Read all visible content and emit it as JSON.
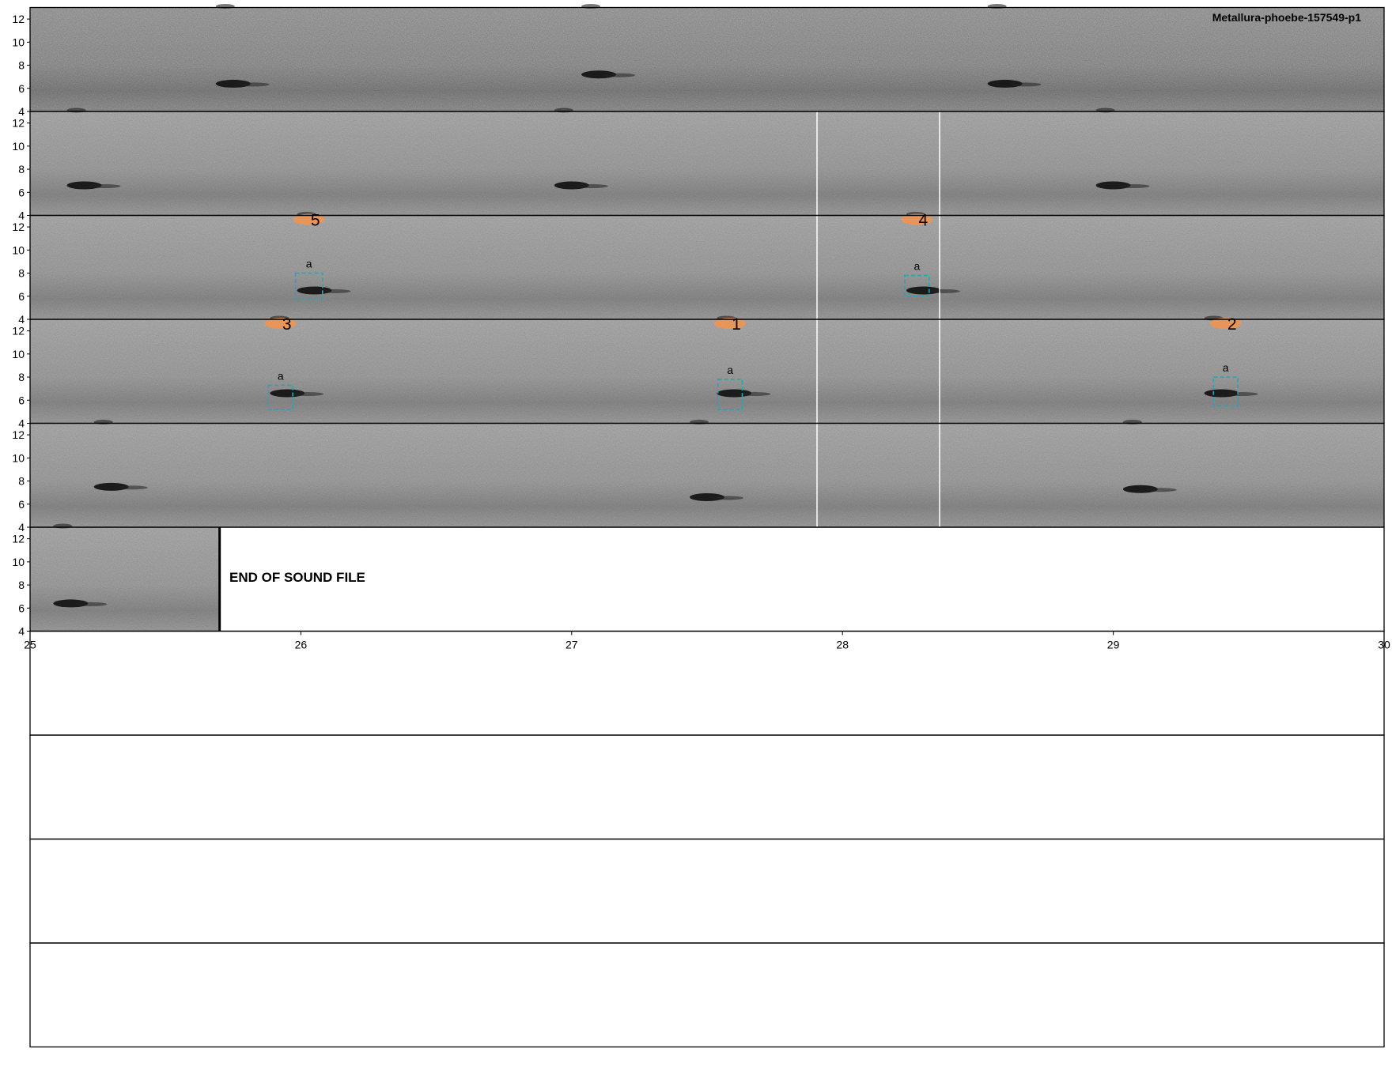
{
  "figure": {
    "title": "Metallura-phoebe-157549-p1",
    "end_text": "END OF SOUND FILE"
  },
  "chart_data": {
    "type": "spectrogram",
    "title": "Metallura-phoebe-157549-p1",
    "yunit": "kHz",
    "ylim": [
      4,
      13
    ],
    "yticks": [
      4,
      6,
      8,
      10,
      12
    ],
    "rows_total": 10,
    "bottom_axis": {
      "xlim": [
        25,
        30
      ],
      "ticks": [
        25,
        26,
        27,
        28,
        29,
        30
      ]
    },
    "rows": [
      {
        "index": 1,
        "xlim": [
          0,
          5
        ],
        "calls": [
          {
            "x": 0.75,
            "y": 6.4
          },
          {
            "x": 3.6,
            "y": 6.4
          },
          {
            "x": 2.1,
            "y": 7.2
          }
        ]
      },
      {
        "index": 2,
        "xlim": [
          5,
          10
        ],
        "calls": [
          {
            "x": 5.2,
            "y": 6.6
          },
          {
            "x": 7.0,
            "y": 6.6
          },
          {
            "x": 9.0,
            "y": 6.6
          }
        ]
      },
      {
        "index": 3,
        "xlim": [
          10,
          15
        ],
        "calls": [
          {
            "x": 11.05,
            "y": 6.5
          },
          {
            "x": 13.3,
            "y": 6.5
          }
        ]
      },
      {
        "index": 4,
        "xlim": [
          15,
          20
        ],
        "calls": [
          {
            "x": 15.95,
            "y": 6.6
          },
          {
            "x": 17.6,
            "y": 6.6
          },
          {
            "x": 19.4,
            "y": 6.6
          }
        ]
      },
      {
        "index": 5,
        "xlim": [
          20,
          25
        ],
        "calls": [
          {
            "x": 22.5,
            "y": 6.6
          },
          {
            "x": 20.3,
            "y": 7.5
          },
          {
            "x": 24.1,
            "y": 7.3
          }
        ]
      },
      {
        "index": 6,
        "xlim": [
          25,
          30
        ],
        "sound_until": 25.7,
        "calls": [
          {
            "x": 25.15,
            "y": 6.4
          }
        ]
      },
      {
        "index": 7,
        "xlim": [
          30,
          35
        ],
        "empty": true
      },
      {
        "index": 8,
        "xlim": [
          35,
          40
        ],
        "empty": true
      },
      {
        "index": 9,
        "xlim": [
          40,
          45
        ],
        "empty": true
      },
      {
        "index": 10,
        "xlim": [
          45,
          50
        ],
        "empty": true
      }
    ],
    "annotations": [
      {
        "number": "5",
        "label": "a",
        "row": 3,
        "t_start": 10.98,
        "t_end": 11.08,
        "f_low": 5.8,
        "f_high": 8.0
      },
      {
        "number": "4",
        "label": "a",
        "row": 3,
        "t_start": 13.23,
        "t_end": 13.32,
        "f_low": 6.0,
        "f_high": 7.8
      },
      {
        "number": "3",
        "label": "a",
        "row": 4,
        "t_start": 15.88,
        "t_end": 15.97,
        "f_low": 5.2,
        "f_high": 7.3
      },
      {
        "number": "1",
        "label": "a",
        "row": 4,
        "t_start": 17.54,
        "t_end": 17.63,
        "f_low": 5.2,
        "f_high": 7.8
      },
      {
        "number": "2",
        "label": "a",
        "row": 4,
        "t_start": 19.37,
        "t_end": 19.46,
        "f_low": 5.5,
        "f_high": 8.0
      }
    ],
    "colors": {
      "annotation_box": "#2aa3b8",
      "number_marker": "#e8955a",
      "frame": "#000000",
      "panel_divider": "#ffffff"
    }
  }
}
